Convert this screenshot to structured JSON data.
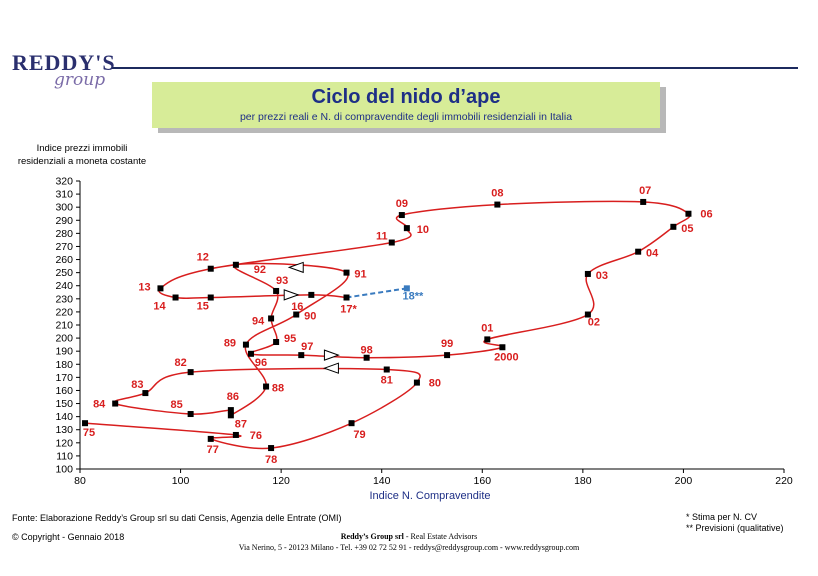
{
  "logo": {
    "main": "REDDY'S",
    "sub": "group"
  },
  "header": {
    "title": "Ciclo del nido d’ape",
    "subtitle": "per prezzi reali e N. di compravendite degli immobili residenziali in Italia"
  },
  "colors": {
    "series": "#d81e1e",
    "forecast": "#3a7bbf",
    "label": "#d81e1e",
    "axis_label": "#1e2f86"
  },
  "chart_data": {
    "type": "line",
    "title": "Ciclo del nido d’ape",
    "subtitle": "per prezzi reali e N. di compravendite degli immobili residenziali in Italia",
    "xlabel": "Indice N. Compravendite",
    "ylabel": "Indice prezzi immobili residenziali a moneta costante",
    "xlim": [
      80,
      220
    ],
    "ylim": [
      100,
      320
    ],
    "x_ticks": [
      80,
      100,
      120,
      140,
      160,
      180,
      200,
      220
    ],
    "y_ticks": [
      100,
      110,
      120,
      130,
      140,
      150,
      160,
      170,
      180,
      190,
      200,
      210,
      220,
      230,
      240,
      250,
      260,
      270,
      280,
      290,
      300,
      310,
      320
    ],
    "grid": false,
    "series": [
      {
        "points": [
          {
            "label": "75",
            "x": 81,
            "y": 135
          },
          {
            "label": "76",
            "x": 111,
            "y": 126
          },
          {
            "label": "77",
            "x": 106,
            "y": 123
          },
          {
            "label": "78",
            "x": 118,
            "y": 116
          },
          {
            "label": "79",
            "x": 134,
            "y": 135
          },
          {
            "label": "80",
            "x": 147,
            "y": 166
          },
          {
            "label": "81",
            "x": 141,
            "y": 176
          },
          {
            "label": "82",
            "x": 102,
            "y": 174
          },
          {
            "label": "83",
            "x": 93,
            "y": 158
          },
          {
            "label": "84",
            "x": 87,
            "y": 150
          },
          {
            "label": "85",
            "x": 102,
            "y": 142
          },
          {
            "label": "86",
            "x": 110,
            "y": 145
          },
          {
            "label": "87",
            "x": 110,
            "y": 141
          },
          {
            "label": "88",
            "x": 117,
            "y": 163
          },
          {
            "label": "89",
            "x": 113,
            "y": 195
          },
          {
            "label": "90",
            "x": 123,
            "y": 218
          },
          {
            "label": "91",
            "x": 133,
            "y": 250
          },
          {
            "label": "92",
            "x": 111,
            "y": 256
          },
          {
            "label": "93",
            "x": 119,
            "y": 236
          },
          {
            "label": "94",
            "x": 118,
            "y": 215
          },
          {
            "label": "95",
            "x": 119,
            "y": 197
          },
          {
            "label": "96",
            "x": 114,
            "y": 188
          },
          {
            "label": "97",
            "x": 124,
            "y": 187
          },
          {
            "label": "98",
            "x": 137,
            "y": 185
          },
          {
            "label": "99",
            "x": 153,
            "y": 187
          },
          {
            "label": "2000",
            "x": 164,
            "y": 193
          },
          {
            "label": "01",
            "x": 161,
            "y": 199
          },
          {
            "label": "02",
            "x": 181,
            "y": 218
          },
          {
            "label": "03",
            "x": 181,
            "y": 249
          },
          {
            "label": "04",
            "x": 191,
            "y": 266
          },
          {
            "label": "05",
            "x": 198,
            "y": 285
          },
          {
            "label": "06",
            "x": 201,
            "y": 295
          },
          {
            "label": "07",
            "x": 192,
            "y": 304
          },
          {
            "label": "08",
            "x": 163,
            "y": 302
          },
          {
            "label": "09",
            "x": 144,
            "y": 294
          },
          {
            "label": "10",
            "x": 145,
            "y": 284
          },
          {
            "label": "11",
            "x": 142,
            "y": 273
          },
          {
            "label": "12",
            "x": 106,
            "y": 253
          },
          {
            "label": "13",
            "x": 96,
            "y": 238
          },
          {
            "label": "14",
            "x": 99,
            "y": 231
          },
          {
            "label": "15",
            "x": 106,
            "y": 231
          },
          {
            "label": "16",
            "x": 126,
            "y": 233
          },
          {
            "label": "17*",
            "x": 133,
            "y": 231
          }
        ]
      },
      {
        "name": "18**",
        "dashed": true,
        "points": [
          {
            "label": "17*",
            "x": 133,
            "y": 231
          },
          {
            "label": "18**",
            "x": 145,
            "y": 238
          }
        ]
      }
    ]
  },
  "footer": {
    "source": "Fonte: Elaborazione Reddy’s Group srl su dati Censis, Agenzia delle Entrate (OMI)",
    "copyright": "© Copyright  - Gennaio 2018",
    "note1": "* Stima per N. CV",
    "note2": "** Previsioni (qualitative)",
    "company": "Reddy’s Group srl",
    "company_desc": " - Real Estate Advisors",
    "address": "Via Nerino, 5 - 20123 Milano - Tel. +39 02 72 52 91 - reddys@reddysgroup.com - www.reddysgroup.com"
  }
}
